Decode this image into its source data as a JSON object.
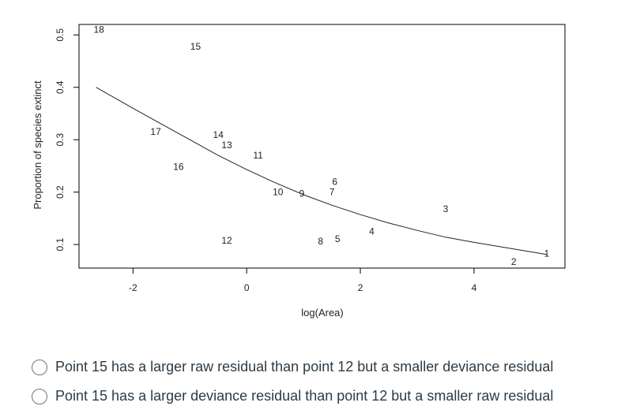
{
  "chart_data": {
    "type": "scatter",
    "xlabel": "log(Area)",
    "ylabel": "Proportion of species extinct",
    "xlim": [
      -2.95,
      5.6
    ],
    "ylim": [
      0.055,
      0.52
    ],
    "xticks": [
      {
        "value": -2,
        "label": "-2"
      },
      {
        "value": 0,
        "label": "0"
      },
      {
        "value": 2,
        "label": "2"
      },
      {
        "value": 4,
        "label": "4"
      }
    ],
    "yticks": [
      {
        "value": 0.1,
        "label": "0.1"
      },
      {
        "value": 0.2,
        "label": "0.2"
      },
      {
        "value": 0.3,
        "label": "0.3"
      },
      {
        "value": 0.4,
        "label": "0.4"
      },
      {
        "value": 0.5,
        "label": "0.5"
      }
    ],
    "points": [
      {
        "label": "1",
        "x": 5.28,
        "y": 0.083
      },
      {
        "label": "2",
        "x": 4.7,
        "y": 0.067
      },
      {
        "label": "3",
        "x": 3.5,
        "y": 0.168
      },
      {
        "label": "4",
        "x": 2.2,
        "y": 0.125
      },
      {
        "label": "5",
        "x": 1.6,
        "y": 0.111
      },
      {
        "label": "6",
        "x": 1.55,
        "y": 0.22
      },
      {
        "label": "7",
        "x": 1.5,
        "y": 0.2
      },
      {
        "label": "8",
        "x": 1.3,
        "y": 0.106
      },
      {
        "label": "9",
        "x": 0.97,
        "y": 0.197
      },
      {
        "label": "10",
        "x": 0.55,
        "y": 0.2
      },
      {
        "label": "11",
        "x": 0.2,
        "y": 0.27
      },
      {
        "label": "12",
        "x": -0.35,
        "y": 0.108
      },
      {
        "label": "13",
        "x": -0.35,
        "y": 0.29
      },
      {
        "label": "14",
        "x": -0.5,
        "y": 0.309
      },
      {
        "label": "15",
        "x": -0.9,
        "y": 0.478
      },
      {
        "label": "16",
        "x": -1.2,
        "y": 0.248
      },
      {
        "label": "17",
        "x": -1.6,
        "y": 0.315
      },
      {
        "label": "18",
        "x": -2.6,
        "y": 0.51
      }
    ],
    "fitted_curve": {
      "x": [
        -2.65,
        -2.0,
        -1.5,
        -1.0,
        -0.5,
        0.0,
        0.5,
        1.0,
        1.5,
        2.0,
        2.5,
        3.0,
        3.5,
        4.0,
        4.5,
        5.0,
        5.28
      ],
      "y": [
        0.4,
        0.36,
        0.33,
        0.3,
        0.27,
        0.243,
        0.218,
        0.195,
        0.175,
        0.157,
        0.141,
        0.127,
        0.114,
        0.104,
        0.095,
        0.086,
        0.081
      ]
    },
    "grid": false,
    "legend": false
  },
  "question": {
    "options": [
      {
        "label": "Point 15 has a larger raw residual than point 12 but a smaller deviance residual"
      },
      {
        "label": "Point 15 has a larger deviance residual than point 12 but a smaller raw residual"
      }
    ]
  }
}
